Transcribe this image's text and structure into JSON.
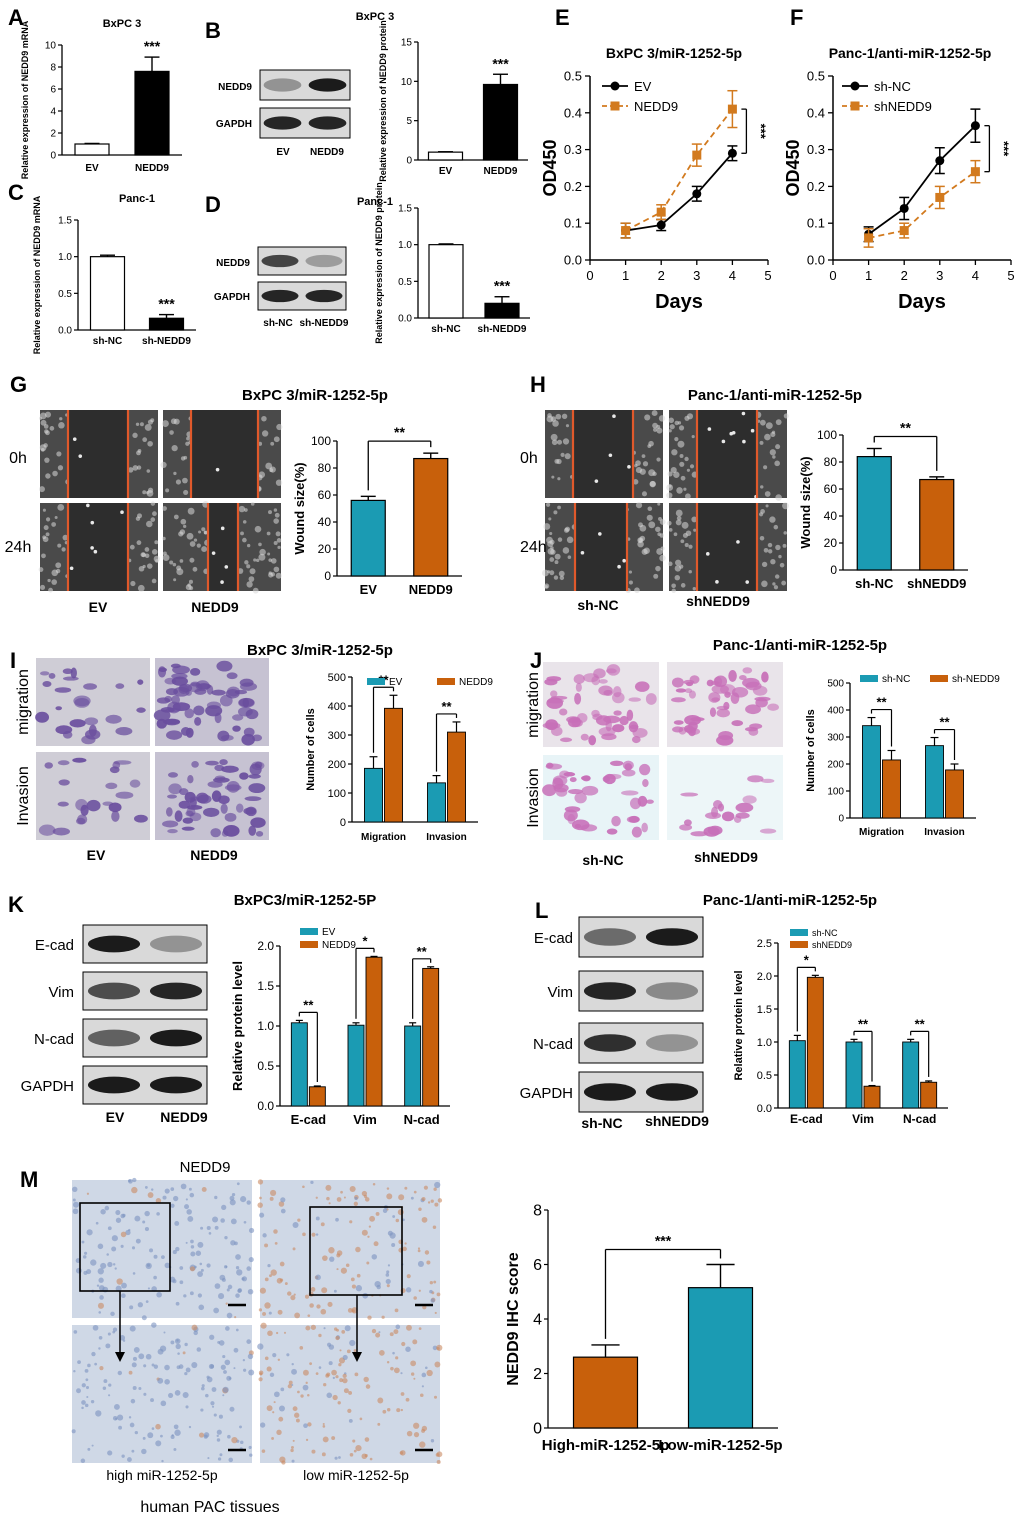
{
  "colors": {
    "black": "#000000",
    "white": "#ffffff",
    "orange": "#c8600b",
    "teal": "#1b9bb3",
    "line_orange": "#d27a1e",
    "cut_line": "#e0592b",
    "blot_bg": "#d9d9d9",
    "ihc_blue": "#cfd8e6",
    "ihc_brown": "#c98a62",
    "stain_purple": "#6a4e9e",
    "stain_magenta": "#c76fb8",
    "scratch_bg": "#2d2d2d"
  },
  "panels": {
    "A": {
      "letter": "A",
      "chart_data": {
        "type": "bar",
        "title": "BxPC 3",
        "categories": [
          "EV",
          "NEDD9"
        ],
        "values": [
          1.0,
          7.6
        ],
        "errors": [
          0.05,
          1.3
        ],
        "fills": [
          "white",
          "black"
        ],
        "ylabel": "Relative expression of NEDD9 mRNA",
        "ylim": [
          0,
          10
        ],
        "yticks": [
          "0",
          "2",
          "4",
          "6",
          "8",
          "10"
        ],
        "sig": "***"
      }
    },
    "B": {
      "letter": "B",
      "blot": {
        "title": "BxPC 3",
        "rows": [
          "NEDD9",
          "GAPDH"
        ],
        "lanes": [
          "EV",
          "NEDD9"
        ]
      },
      "chart_data": {
        "type": "bar",
        "categories": [
          "EV",
          "NEDD9"
        ],
        "values": [
          1.0,
          9.6
        ],
        "errors": [
          0.05,
          1.3
        ],
        "fills": [
          "white",
          "black"
        ],
        "ylabel": "Relative expression of NEDD9 protein",
        "ylim": [
          0,
          15
        ],
        "yticks": [
          "0",
          "5",
          "10",
          "15"
        ],
        "sig": "***"
      }
    },
    "C": {
      "letter": "C",
      "chart_data": {
        "type": "bar",
        "title": "Panc-1",
        "categories": [
          "sh-NC",
          "sh-NEDD9"
        ],
        "values": [
          1.0,
          0.16
        ],
        "errors": [
          0.02,
          0.05
        ],
        "fills": [
          "white",
          "black"
        ],
        "ylabel": "Relative expression of NEDD9 mRNA",
        "ylim": [
          0,
          1.5
        ],
        "yticks": [
          "0.0",
          "0.5",
          "1.0",
          "1.5"
        ],
        "sig": "***"
      }
    },
    "D": {
      "letter": "D",
      "blot": {
        "title": "Panc-1",
        "rows": [
          "NEDD9",
          "GAPDH"
        ],
        "lanes": [
          "sh-NC",
          "sh-NEDD9"
        ]
      },
      "chart_data": {
        "type": "bar",
        "categories": [
          "sh-NC",
          "sh-NEDD9"
        ],
        "values": [
          1.0,
          0.2
        ],
        "errors": [
          0.01,
          0.09
        ],
        "fills": [
          "white",
          "black"
        ],
        "ylabel": "Relative expression of NEDD9 protein",
        "ylim": [
          0,
          1.5
        ],
        "yticks": [
          "0.0",
          "0.5",
          "1.0",
          "1.5"
        ],
        "sig": "***"
      }
    },
    "E": {
      "letter": "E",
      "chart_data": {
        "type": "line",
        "title": "BxPC 3/miR-1252-5p",
        "xlabel": "Days",
        "ylabel": "OD450",
        "xlim": [
          0,
          5
        ],
        "ylim": [
          0,
          0.5
        ],
        "xticks": [
          "0",
          "1",
          "2",
          "3",
          "4",
          "5"
        ],
        "yticks": [
          "0.0",
          "0.1",
          "0.2",
          "0.3",
          "0.4",
          "0.5"
        ],
        "x": [
          1,
          2,
          3,
          4
        ],
        "series": [
          {
            "name": "EV",
            "values": [
              0.08,
              0.095,
              0.18,
              0.29
            ],
            "errors": [
              0.02,
              0.015,
              0.02,
              0.02
            ],
            "style": "black-circle"
          },
          {
            "name": "NEDD9",
            "values": [
              0.08,
              0.13,
              0.285,
              0.41
            ],
            "errors": [
              0.02,
              0.02,
              0.03,
              0.05
            ],
            "style": "orange-square"
          }
        ],
        "legend": "top-left",
        "sig": "***"
      }
    },
    "F": {
      "letter": "F",
      "chart_data": {
        "type": "line",
        "title": "Panc-1/anti-miR-1252-5p",
        "xlabel": "Days",
        "ylabel": "OD450",
        "xlim": [
          0,
          5
        ],
        "ylim": [
          0,
          0.5
        ],
        "xticks": [
          "0",
          "1",
          "2",
          "3",
          "4",
          "5"
        ],
        "yticks": [
          "0.0",
          "0.1",
          "0.2",
          "0.3",
          "0.4",
          "0.5"
        ],
        "x": [
          1,
          2,
          3,
          4
        ],
        "series": [
          {
            "name": "sh-NC",
            "values": [
              0.07,
              0.14,
              0.27,
              0.365
            ],
            "errors": [
              0.02,
              0.03,
              0.035,
              0.045
            ],
            "style": "black-circle"
          },
          {
            "name": "shNEDD9",
            "values": [
              0.06,
              0.08,
              0.17,
              0.24
            ],
            "errors": [
              0.025,
              0.02,
              0.03,
              0.03
            ],
            "style": "orange-square"
          }
        ],
        "legend": "top-left",
        "sig": "***"
      }
    },
    "G": {
      "letter": "G",
      "title": "BxPC 3/miR-1252-5p",
      "rows": [
        "0h",
        "24h"
      ],
      "cols": [
        "EV",
        "NEDD9"
      ],
      "chart_data": {
        "type": "bar",
        "categories": [
          "EV",
          "NEDD9"
        ],
        "values": [
          56,
          87
        ],
        "errors": [
          3,
          4
        ],
        "fills": [
          "teal",
          "orange"
        ],
        "ylabel": "Wound size(%)",
        "ylim": [
          0,
          100
        ],
        "yticks": [
          "0",
          "20",
          "40",
          "60",
          "80",
          "100"
        ],
        "sig": "**"
      }
    },
    "H": {
      "letter": "H",
      "title": "Panc-1/anti-miR-1252-5p",
      "rows": [
        "0h",
        "24h"
      ],
      "cols": [
        "sh-NC",
        "shNEDD9"
      ],
      "chart_data": {
        "type": "bar",
        "categories": [
          "sh-NC",
          "shNEDD9"
        ],
        "values": [
          84,
          67
        ],
        "errors": [
          6,
          2
        ],
        "fills": [
          "teal",
          "orange"
        ],
        "ylabel": "Wound size(%)",
        "ylim": [
          0,
          100
        ],
        "yticks": [
          "0",
          "20",
          "40",
          "60",
          "80",
          "100"
        ],
        "sig": "**"
      }
    },
    "I": {
      "letter": "I",
      "title": "BxPC 3/miR-1252-5p",
      "rows": [
        "migration",
        "Invasion"
      ],
      "cols": [
        "EV",
        "NEDD9"
      ],
      "chart_data": {
        "type": "bar",
        "categories": [
          "Migration",
          "Invasion"
        ],
        "series": [
          {
            "name": "EV",
            "values": [
              185,
              135
            ],
            "errors": [
              40,
              25
            ]
          },
          {
            "name": "NEDD9",
            "values": [
              392,
              310
            ],
            "errors": [
              45,
              35
            ]
          }
        ],
        "fills": [
          "teal",
          "orange"
        ],
        "ylabel": "Number of cells",
        "ylim": [
          0,
          500
        ],
        "yticks": [
          "0",
          "100",
          "200",
          "300",
          "400",
          "500"
        ],
        "sig": [
          "**",
          "**"
        ],
        "legend": "top"
      }
    },
    "J": {
      "letter": "J",
      "title": "Panc-1/anti-miR-1252-5p",
      "rows": [
        "migration",
        "Invasion"
      ],
      "cols": [
        "sh-NC",
        "shNEDD9"
      ],
      "chart_data": {
        "type": "bar",
        "categories": [
          "Migration",
          "Invasion"
        ],
        "series": [
          {
            "name": "sh-NC",
            "values": [
              342,
              268
            ],
            "errors": [
              30,
              30
            ]
          },
          {
            "name": "sh-NEDD9",
            "values": [
              215,
              178
            ],
            "errors": [
              35,
              22
            ]
          }
        ],
        "fills": [
          "teal",
          "orange"
        ],
        "ylabel": "Number of cells",
        "ylim": [
          0,
          500
        ],
        "yticks": [
          "0",
          "100",
          "200",
          "300",
          "400",
          "500"
        ],
        "sig": [
          "**",
          "**"
        ],
        "legend": "top"
      }
    },
    "K": {
      "letter": "K",
      "title": "BxPC3/miR-1252-5P",
      "rows": [
        "E-cad",
        "Vim",
        "N-cad",
        "GAPDH"
      ],
      "lanes": [
        "EV",
        "NEDD9"
      ],
      "chart_data": {
        "type": "bar",
        "categories": [
          "E-cad",
          "Vim",
          "N-cad"
        ],
        "series": [
          {
            "name": "EV",
            "values": [
              1.04,
              1.01,
              1.0
            ],
            "errors": [
              0.03,
              0.03,
              0.04
            ]
          },
          {
            "name": "NEDD9",
            "values": [
              0.24,
              1.86,
              1.72
            ],
            "errors": [
              0.01,
              0.01,
              0.02
            ]
          }
        ],
        "fills": [
          "teal",
          "orange"
        ],
        "ylabel": "Relative protein level",
        "ylim": [
          0,
          2.0
        ],
        "yticks": [
          "0.0",
          "0.5",
          "1.0",
          "1.5",
          "2.0"
        ],
        "sig": [
          "**",
          "*",
          "**"
        ],
        "legend": "top"
      }
    },
    "L": {
      "letter": "L",
      "title": "Panc-1/anti-miR-1252-5p",
      "rows": [
        "E-cad",
        "Vim",
        "N-cad",
        "GAPDH"
      ],
      "lanes": [
        "sh-NC",
        "shNEDD9"
      ],
      "chart_data": {
        "type": "bar",
        "categories": [
          "E-cad",
          "Vim",
          "N-cad"
        ],
        "series": [
          {
            "name": "sh-NC",
            "values": [
              1.02,
              1.0,
              1.0
            ],
            "errors": [
              0.08,
              0.04,
              0.04
            ]
          },
          {
            "name": "shNEDD9",
            "values": [
              1.98,
              0.33,
              0.39
            ],
            "errors": [
              0.03,
              0.01,
              0.02
            ]
          }
        ],
        "fills": [
          "teal",
          "orange"
        ],
        "ylabel": "Relative protein level",
        "ylim": [
          0,
          2.5
        ],
        "yticks": [
          "0.0",
          "0.5",
          "1.0",
          "1.5",
          "2.0",
          "2.5"
        ],
        "sig": [
          "*",
          "**",
          "**"
        ],
        "legend": "top"
      }
    },
    "M": {
      "letter": "M",
      "title": "NEDD9",
      "cols": [
        "high miR-1252-5p",
        "low miR-1252-5p"
      ],
      "caption": "human PAC tissues",
      "chart_data": {
        "type": "bar",
        "categories": [
          "High-miR-1252-5p",
          "Low-miR-1252-5p"
        ],
        "values": [
          2.6,
          5.15
        ],
        "errors": [
          0.45,
          0.85
        ],
        "fills": [
          "orange",
          "teal"
        ],
        "ylabel": "NEDD9 IHC score",
        "ylim": [
          0,
          8
        ],
        "yticks": [
          "0",
          "2",
          "4",
          "6",
          "8"
        ],
        "sig": "***"
      }
    }
  }
}
